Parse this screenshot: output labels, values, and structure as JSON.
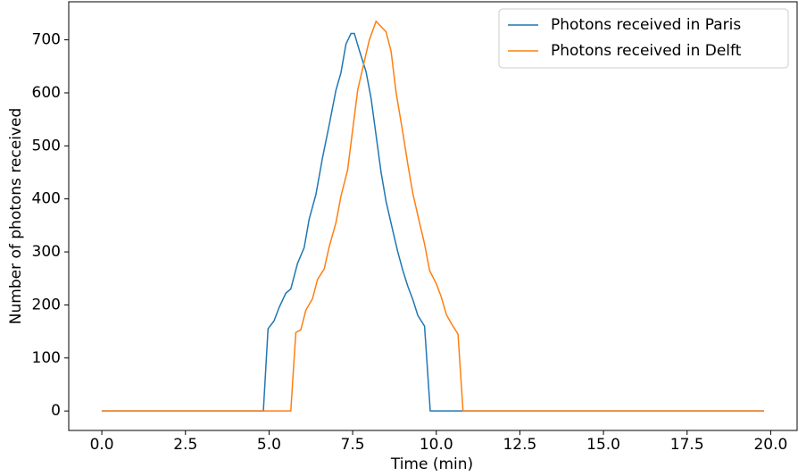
{
  "chart_data": {
    "type": "line",
    "xlabel": "Time (min)",
    "ylabel": "Number of photons received",
    "series": [
      {
        "name": "Photons received in Paris",
        "color": "#1f77b4",
        "x": [
          0,
          4.83,
          4.97,
          5.15,
          5.3,
          5.5,
          5.65,
          5.85,
          6.05,
          6.2,
          6.4,
          6.6,
          6.8,
          7.0,
          7.15,
          7.3,
          7.45,
          7.55,
          7.7,
          7.9,
          8.05,
          8.2,
          8.35,
          8.5,
          8.7,
          8.85,
          9.0,
          9.15,
          9.3,
          9.45,
          9.65,
          9.82,
          19.8
        ],
        "values": [
          0,
          0,
          155,
          170,
          195,
          222,
          230,
          278,
          308,
          362,
          408,
          478,
          540,
          605,
          638,
          692,
          712,
          712,
          680,
          640,
          590,
          520,
          450,
          395,
          340,
          300,
          265,
          235,
          210,
          180,
          160,
          0,
          0
        ]
      },
      {
        "name": "Photons received in Delft",
        "color": "#ff7f0e",
        "x": [
          0,
          5.65,
          5.8,
          5.95,
          6.1,
          6.3,
          6.45,
          6.65,
          6.8,
          7.0,
          7.15,
          7.35,
          7.5,
          7.65,
          7.85,
          8.0,
          8.2,
          8.35,
          8.5,
          8.65,
          8.8,
          9.0,
          9.15,
          9.3,
          9.5,
          9.65,
          9.8,
          10.0,
          10.15,
          10.3,
          10.45,
          10.65,
          10.8,
          19.8
        ],
        "values": [
          0,
          0,
          148,
          153,
          190,
          212,
          248,
          268,
          310,
          355,
          405,
          455,
          530,
          605,
          660,
          700,
          735,
          725,
          715,
          678,
          600,
          525,
          465,
          410,
          355,
          315,
          265,
          240,
          215,
          182,
          165,
          145,
          0,
          0
        ]
      }
    ],
    "xlim": [
      -0.99,
      20.79
    ],
    "xticks": [
      {
        "value": 0,
        "label": "0.0"
      },
      2.5,
      {
        "value": 5,
        "label": "5.0"
      },
      7.5,
      {
        "value": 10,
        "label": "10.0"
      },
      12.5,
      {
        "value": 15,
        "label": "15.0"
      },
      17.5,
      {
        "value": 20,
        "label": "20.0"
      }
    ],
    "ylim": [
      -36.75,
      771.75
    ],
    "yticks": [
      0,
      100,
      200,
      300,
      400,
      500,
      600,
      700
    ],
    "grid": false,
    "legend": "upper right"
  }
}
